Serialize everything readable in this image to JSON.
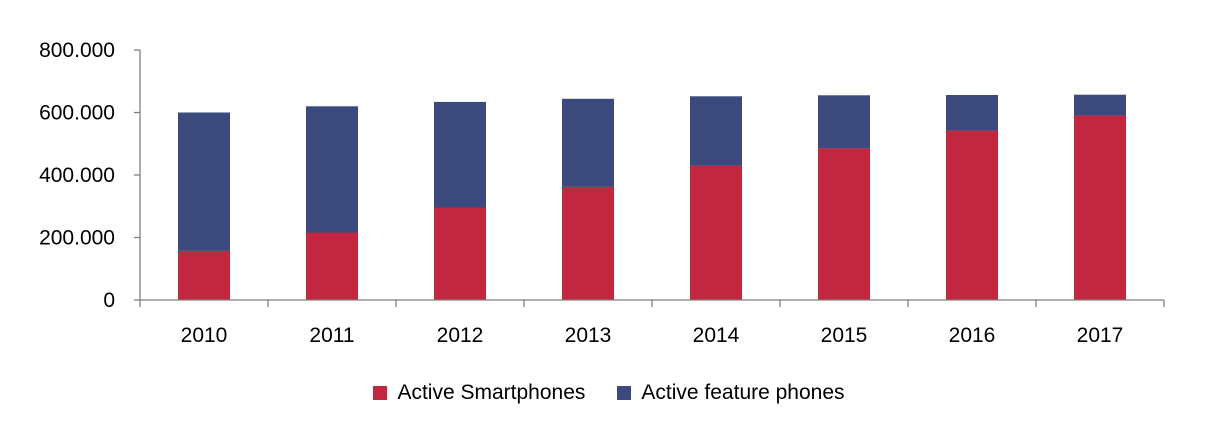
{
  "chart_data": {
    "type": "bar",
    "stacked": true,
    "categories": [
      "2010",
      "2011",
      "2012",
      "2013",
      "2014",
      "2015",
      "2016",
      "2017"
    ],
    "series": [
      {
        "name": "Active Smartphones",
        "color": "#C3273F",
        "values": [
          157000,
          216000,
          296000,
          362000,
          430000,
          485000,
          542000,
          590000
        ]
      },
      {
        "name": "Active feature phones",
        "color": "#3A4A7D",
        "values": [
          443000,
          404000,
          338000,
          282000,
          222000,
          170000,
          114000,
          67000
        ]
      }
    ],
    "yticks": [
      "0",
      "200.000",
      "400.000",
      "600.000",
      "800.000"
    ],
    "ylim": [
      0,
      800000
    ],
    "grid": false,
    "legend": "bottom"
  }
}
